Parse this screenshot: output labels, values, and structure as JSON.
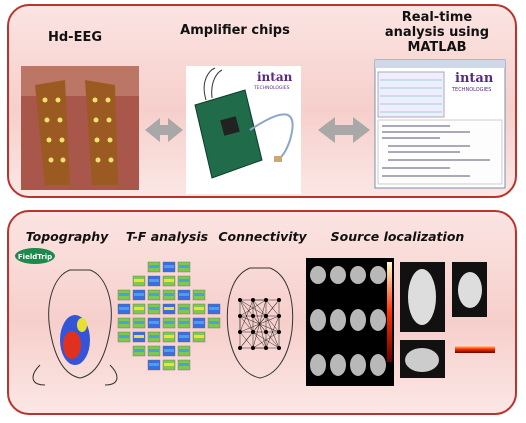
{
  "top_panel": {
    "stages": [
      {
        "label": "Hd-EEG"
      },
      {
        "label": "Amplifier chips",
        "logo": "intan",
        "logo_sub": "TECHNOLOGIES"
      },
      {
        "label": "Real-time analysis using MATLAB",
        "logo": "intan",
        "logo_sub": "TECHNOLOGIES"
      }
    ]
  },
  "bottom_panel": {
    "methods": [
      {
        "label": "Topography",
        "logo": "FieldTrip"
      },
      {
        "label": "T-F analysis"
      },
      {
        "label": "Connectivity"
      },
      {
        "label": "Source localization"
      }
    ]
  }
}
